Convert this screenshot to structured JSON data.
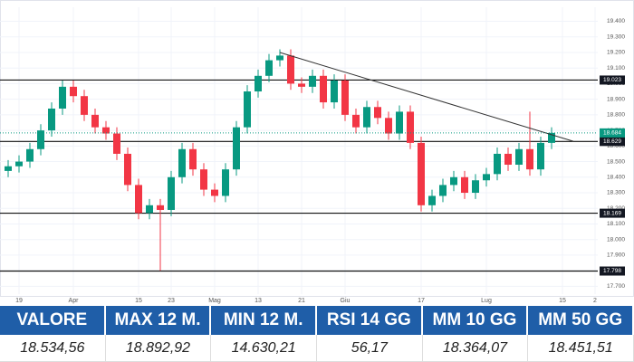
{
  "chart_data": {
    "type": "candlestick",
    "categories": [
      null,
      "19",
      null,
      null,
      null,
      null,
      "Apr",
      null,
      null,
      null,
      null,
      null,
      "15",
      null,
      null,
      "23",
      null,
      null,
      null,
      "Mag",
      null,
      null,
      null,
      "13",
      null,
      null,
      null,
      "21",
      null,
      null,
      null,
      "Giu",
      null,
      null,
      null,
      null,
      null,
      null,
      "17",
      null,
      null,
      null,
      null,
      null,
      "Lug",
      null,
      null,
      null,
      null,
      null,
      null,
      "15",
      null,
      null,
      "2"
    ],
    "open": [
      18.44,
      18.47,
      18.5,
      18.58,
      18.7,
      18.84,
      18.98,
      18.92,
      18.8,
      18.72,
      18.68,
      18.55,
      18.35,
      18.17,
      18.22,
      18.19,
      18.4,
      18.58,
      18.45,
      18.32,
      18.28,
      18.45,
      18.72,
      18.95,
      19.05,
      19.15,
      19.18,
      19.0,
      18.98,
      19.05,
      18.88,
      19.02,
      18.8,
      18.72,
      18.85,
      18.78,
      18.68,
      18.82,
      18.62,
      18.22,
      18.28,
      18.35,
      18.4,
      18.3,
      18.38,
      18.42,
      18.55,
      18.48,
      18.58,
      18.45,
      18.62,
      null,
      null,
      null,
      null
    ],
    "high": [
      18.51,
      18.54,
      18.62,
      18.74,
      18.88,
      19.02,
      19.02,
      18.96,
      18.84,
      18.76,
      18.72,
      18.59,
      18.39,
      18.26,
      18.26,
      18.44,
      18.62,
      18.62,
      18.49,
      18.36,
      18.49,
      18.76,
      18.99,
      19.09,
      19.19,
      19.22,
      19.22,
      19.04,
      19.09,
      19.09,
      19.06,
      19.06,
      18.84,
      18.89,
      18.89,
      18.82,
      18.86,
      18.86,
      18.66,
      18.32,
      18.39,
      18.44,
      18.44,
      18.42,
      18.46,
      18.59,
      18.59,
      18.62,
      18.82,
      18.66,
      18.72,
      null,
      null,
      null,
      null
    ],
    "low": [
      18.4,
      18.43,
      18.46,
      18.54,
      18.66,
      18.8,
      18.88,
      18.76,
      18.68,
      18.64,
      18.51,
      18.31,
      18.13,
      18.13,
      17.8,
      18.15,
      18.36,
      18.41,
      18.28,
      18.24,
      18.24,
      18.41,
      18.68,
      18.91,
      19.01,
      19.11,
      18.96,
      18.94,
      18.94,
      18.84,
      18.84,
      18.76,
      18.68,
      18.68,
      18.74,
      18.64,
      18.64,
      18.58,
      18.18,
      18.18,
      18.24,
      18.31,
      18.26,
      18.26,
      18.34,
      18.38,
      18.44,
      18.44,
      18.41,
      18.41,
      18.58,
      null,
      null,
      null,
      null
    ],
    "close": [
      18.47,
      18.5,
      18.58,
      18.7,
      18.84,
      18.98,
      18.92,
      18.8,
      18.72,
      18.68,
      18.55,
      18.35,
      18.17,
      18.22,
      18.19,
      18.4,
      18.58,
      18.45,
      18.32,
      18.28,
      18.45,
      18.72,
      18.95,
      19.05,
      19.15,
      19.18,
      19.0,
      18.98,
      19.05,
      18.88,
      19.02,
      18.8,
      18.72,
      18.85,
      18.78,
      18.68,
      18.82,
      18.62,
      18.22,
      18.28,
      18.35,
      18.4,
      18.3,
      18.38,
      18.42,
      18.55,
      18.48,
      18.58,
      18.45,
      18.62,
      18.684,
      null,
      null,
      null,
      null
    ],
    "up_color": "#089981",
    "down_color": "#f23645",
    "ylim": [
      17.65,
      19.49
    ],
    "yticks": [
      {
        "value": 17.7,
        "label": "17.700"
      },
      {
        "value": 17.8,
        "label": "17.800"
      },
      {
        "value": 17.9,
        "label": "17.900"
      },
      {
        "value": 18.0,
        "label": "18.000"
      },
      {
        "value": 18.1,
        "label": "18.100"
      },
      {
        "value": 18.2,
        "label": "18.200"
      },
      {
        "value": 18.3,
        "label": "18.300"
      },
      {
        "value": 18.4,
        "label": "18.400"
      },
      {
        "value": 18.5,
        "label": "18.500"
      },
      {
        "value": 18.6,
        "label": "18.600"
      },
      {
        "value": 18.7,
        "label": "18.700"
      },
      {
        "value": 18.8,
        "label": "18.800"
      },
      {
        "value": 18.9,
        "label": "18.900"
      },
      {
        "value": 19.0,
        "label": "19.000"
      },
      {
        "value": 19.1,
        "label": "19.100"
      },
      {
        "value": 19.2,
        "label": "19.200"
      },
      {
        "value": 19.3,
        "label": "19.300"
      },
      {
        "value": 19.4,
        "label": "19.400"
      }
    ],
    "levels": [
      19.023,
      18.629,
      18.169,
      17.798
    ],
    "trendline": {
      "x": [
        25,
        52
      ],
      "y": [
        19.2,
        18.63
      ]
    },
    "last_price": 18.684,
    "grid": true
  },
  "table": {
    "headers": [
      "VALORE",
      "MAX 12 M.",
      "MIN 12 M.",
      "RSI 14 GG",
      "MM 10 GG",
      "MM 50 GG"
    ],
    "values": [
      "18.534,56",
      "18.892,92",
      "14.630,21",
      "56,17",
      "18.364,07",
      "18.451,51"
    ]
  }
}
